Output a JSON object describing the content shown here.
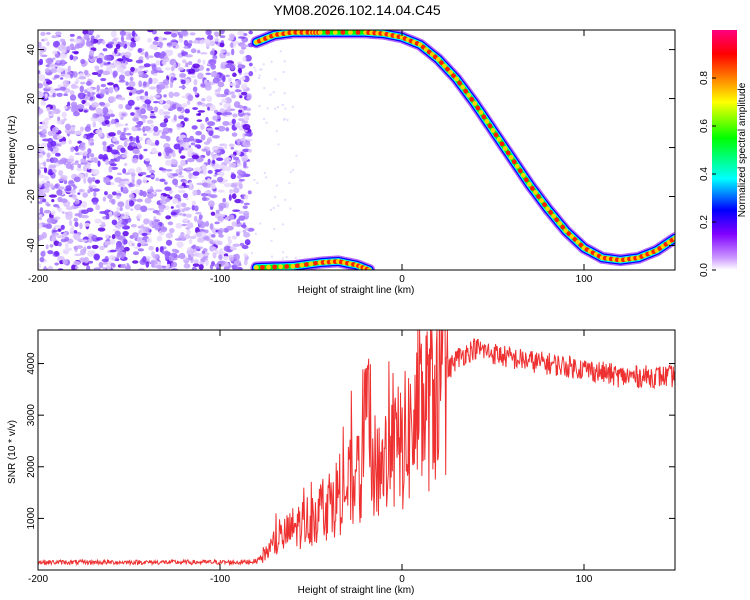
{
  "title": "YM08.2026.102.14.04.C45",
  "chart_data": [
    {
      "type": "heatmap",
      "xlabel": "Height of straight line (km)",
      "ylabel": "Frequency (Hz)",
      "xlim": [
        -200,
        150
      ],
      "ylim": [
        -50,
        48
      ],
      "x_ticks": [
        -200,
        -100,
        0,
        100
      ],
      "y_ticks": [
        -40,
        -20,
        0,
        20,
        40
      ],
      "colorbar": {
        "label": "Normalized spectral amplitude",
        "range": [
          0,
          1
        ],
        "ticks": [
          "0.0",
          "0.2",
          "0.4",
          "0.6",
          "0.8"
        ],
        "colormap": [
          "#ffffff",
          "#8000ff",
          "#0000ff",
          "#00ffff",
          "#00ff00",
          "#ffff00",
          "#ff8000",
          "#ff0000",
          "#ff0080"
        ]
      },
      "features": {
        "noise_region_x": [
          -200,
          -83
        ],
        "signal_track": [
          [
            -80,
            43
          ],
          [
            -70,
            46
          ],
          [
            -60,
            47
          ],
          [
            -50,
            47
          ],
          [
            -45,
            47
          ],
          [
            -20,
            47
          ],
          [
            -10,
            46.5
          ],
          [
            0,
            45
          ],
          [
            10,
            42
          ],
          [
            20,
            36
          ],
          [
            30,
            28
          ],
          [
            40,
            18
          ],
          [
            50,
            7
          ],
          [
            60,
            -4
          ],
          [
            70,
            -15
          ],
          [
            80,
            -25
          ],
          [
            90,
            -34
          ],
          [
            100,
            -41
          ],
          [
            110,
            -45
          ],
          [
            120,
            -46
          ],
          [
            130,
            -45
          ],
          [
            140,
            -42
          ],
          [
            150,
            -37
          ]
        ],
        "wrapped_track": [
          [
            -80,
            -49
          ],
          [
            -60,
            -48.5
          ],
          [
            -45,
            -47
          ],
          [
            -35,
            -46.5
          ],
          [
            -25,
            -48
          ],
          [
            -18,
            -50
          ]
        ]
      }
    },
    {
      "type": "line",
      "xlabel": "Height of straight line (km)",
      "ylabel": "SNR (10 * v/v)",
      "xlim": [
        -200,
        150
      ],
      "ylim": [
        0,
        4650
      ],
      "x_ticks": [
        -200,
        -100,
        0,
        100
      ],
      "y_ticks": [
        1000,
        2000,
        3000,
        4000
      ],
      "color": "#ee3030",
      "envelope": [
        [
          -200,
          150
        ],
        [
          -150,
          150
        ],
        [
          -90,
          150
        ],
        [
          -80,
          170
        ],
        [
          -70,
          500
        ],
        [
          -60,
          800
        ],
        [
          -50,
          1000
        ],
        [
          -40,
          1300
        ],
        [
          -30,
          1600
        ],
        [
          -20,
          1900
        ],
        [
          -10,
          2100
        ],
        [
          0,
          2400
        ],
        [
          10,
          3000
        ],
        [
          20,
          3600
        ],
        [
          30,
          4100
        ],
        [
          40,
          4300
        ],
        [
          50,
          4200
        ],
        [
          60,
          4100
        ],
        [
          80,
          4000
        ],
        [
          100,
          3900
        ],
        [
          120,
          3750
        ],
        [
          150,
          3750
        ]
      ]
    }
  ]
}
